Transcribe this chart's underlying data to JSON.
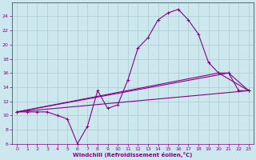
{
  "xlabel": "Windchill (Refroidissement éolien,°C)",
  "bg_color": "#cce8ee",
  "line_color": "#880088",
  "grid_color": "#aacccc",
  "series": [
    [
      0,
      10.5
    ],
    [
      1,
      10.5
    ],
    [
      2,
      10.5
    ],
    [
      3,
      10.5
    ],
    [
      4,
      10.0
    ],
    [
      5,
      9.5
    ],
    [
      6,
      6.0
    ],
    [
      7,
      8.5
    ],
    [
      8,
      13.5
    ],
    [
      9,
      11.0
    ],
    [
      10,
      11.5
    ],
    [
      11,
      15.0
    ],
    [
      12,
      19.5
    ],
    [
      13,
      21.0
    ],
    [
      14,
      23.5
    ],
    [
      15,
      24.5
    ],
    [
      16,
      25.0
    ],
    [
      17,
      23.5
    ],
    [
      18,
      21.5
    ],
    [
      19,
      17.5
    ],
    [
      20,
      16.0
    ],
    [
      21,
      16.0
    ],
    [
      22,
      13.5
    ],
    [
      23,
      13.5
    ]
  ],
  "line2": [
    [
      0,
      10.5
    ],
    [
      23,
      13.5
    ]
  ],
  "line3": [
    [
      0,
      10.5
    ],
    [
      20,
      16.0
    ],
    [
      23,
      13.5
    ]
  ],
  "line4": [
    [
      0,
      10.5
    ],
    [
      20,
      16.0
    ],
    [
      23,
      13.5
    ]
  ],
  "xlim": [
    -0.5,
    23.5
  ],
  "ylim": [
    6,
    26
  ],
  "yticks": [
    6,
    8,
    10,
    12,
    14,
    16,
    18,
    20,
    22,
    24
  ],
  "xticks": [
    0,
    1,
    2,
    3,
    4,
    5,
    6,
    7,
    8,
    9,
    10,
    11,
    12,
    13,
    14,
    15,
    16,
    17,
    18,
    19,
    20,
    21,
    22,
    23
  ]
}
